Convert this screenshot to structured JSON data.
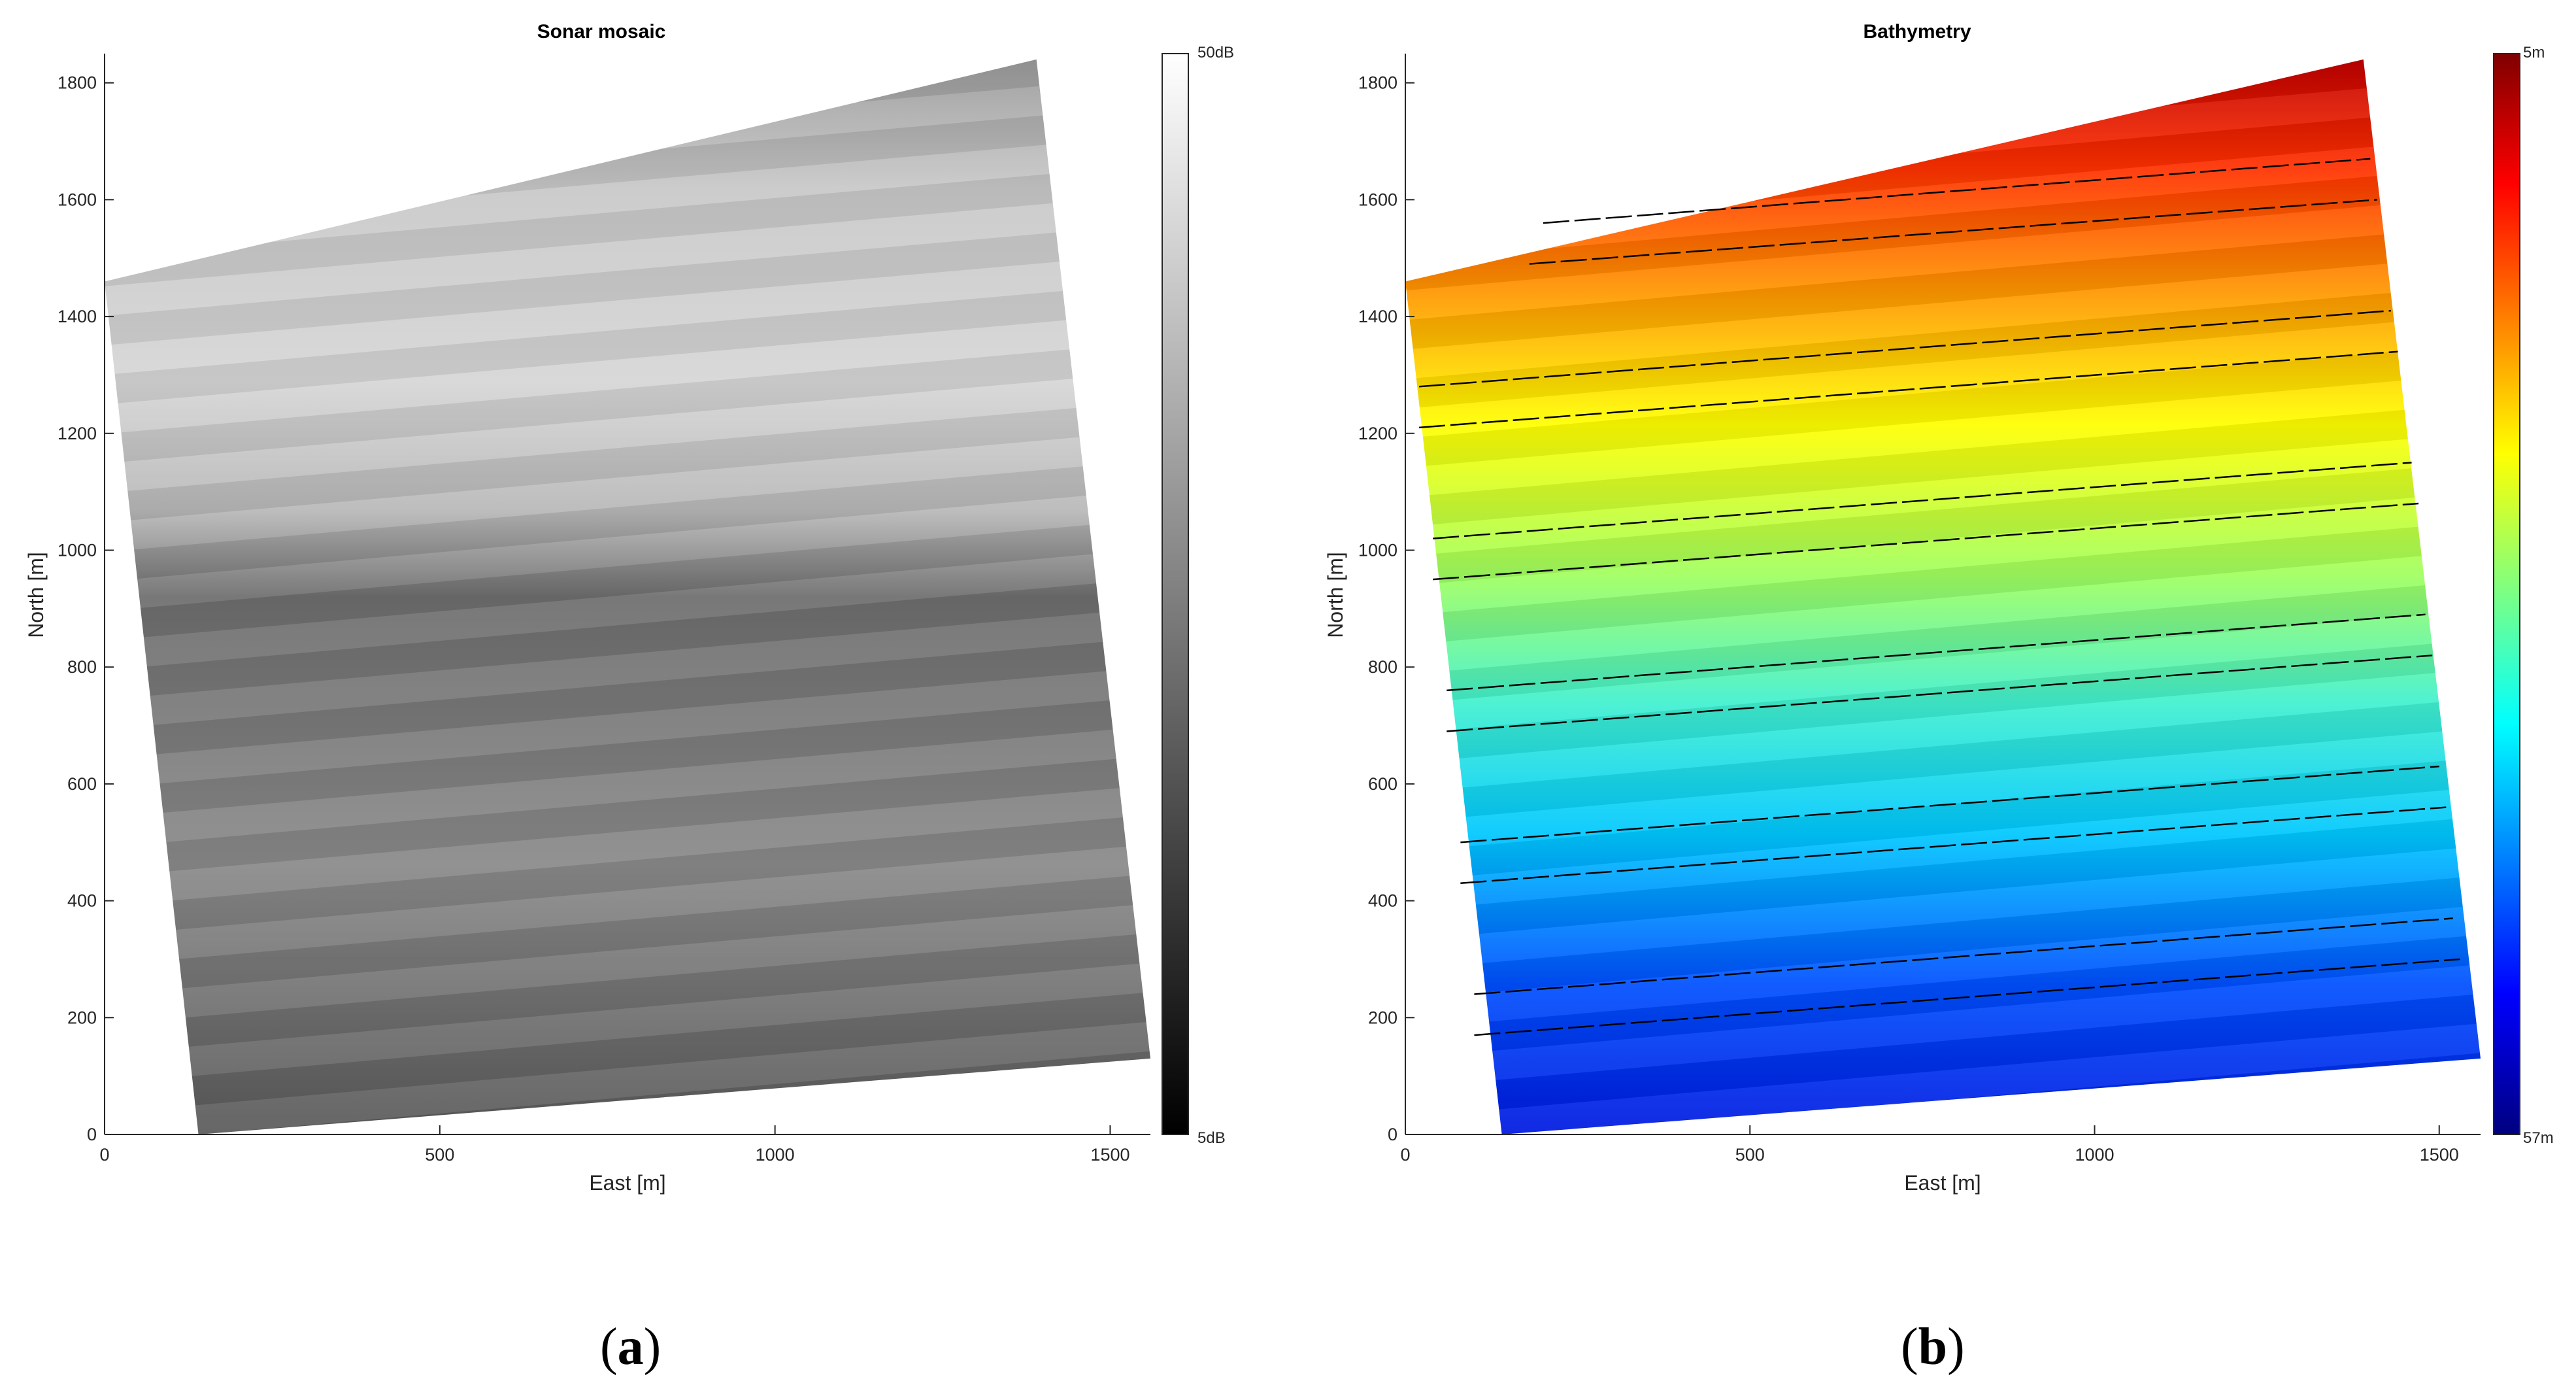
{
  "chart_data": [
    {
      "type": "heatmap",
      "title": "Sonar mosaic",
      "xlabel": "East [m]",
      "ylabel": "North [m]",
      "xlim": [
        0,
        1560
      ],
      "ylim": [
        0,
        1850
      ],
      "xticks": [
        0,
        500,
        1000,
        1500
      ],
      "yticks": [
        0,
        200,
        400,
        600,
        800,
        1000,
        1200,
        1400,
        1600,
        1800
      ],
      "colormap": "gray",
      "colorbar": {
        "max_label": "50dB",
        "min_label": "5dB",
        "min": 5,
        "max": 50,
        "unit": "dB"
      },
      "survey_corners": [
        [
          140,
          0
        ],
        [
          1560,
          130
        ],
        [
          1390,
          1840
        ],
        [
          0,
          1460
        ]
      ]
    },
    {
      "type": "heatmap",
      "title": "Bathymetry",
      "xlabel": "East [m]",
      "ylabel": "North [m]",
      "xlim": [
        0,
        1560
      ],
      "ylim": [
        0,
        1850
      ],
      "xticks": [
        0,
        500,
        1000,
        1500
      ],
      "yticks": [
        0,
        200,
        400,
        600,
        800,
        1000,
        1200,
        1400,
        1600,
        1800
      ],
      "colormap": "jet",
      "colorbar": {
        "max_label": "5m",
        "min_label": "57m",
        "shallow": 5,
        "deep": 57,
        "unit": "m"
      },
      "survey_corners": [
        [
          140,
          0
        ],
        [
          1560,
          130
        ],
        [
          1390,
          1840
        ],
        [
          0,
          1460
        ]
      ],
      "track_lines": [
        [
          [
            200,
            1560
          ],
          [
            1400,
            1670
          ]
        ],
        [
          [
            180,
            1490
          ],
          [
            1410,
            1600
          ]
        ],
        [
          [
            20,
            1280
          ],
          [
            1430,
            1410
          ]
        ],
        [
          [
            20,
            1210
          ],
          [
            1440,
            1340
          ]
        ],
        [
          [
            40,
            1020
          ],
          [
            1460,
            1150
          ]
        ],
        [
          [
            40,
            950
          ],
          [
            1470,
            1080
          ]
        ],
        [
          [
            60,
            760
          ],
          [
            1480,
            890
          ]
        ],
        [
          [
            60,
            690
          ],
          [
            1490,
            820
          ]
        ],
        [
          [
            80,
            500
          ],
          [
            1500,
            630
          ]
        ],
        [
          [
            80,
            430
          ],
          [
            1510,
            560
          ]
        ],
        [
          [
            100,
            240
          ],
          [
            1520,
            370
          ]
        ],
        [
          [
            100,
            170
          ],
          [
            1530,
            300
          ]
        ]
      ]
    }
  ],
  "labels": {
    "a": "a",
    "b": "b"
  },
  "colors": {
    "axis": "#262626",
    "grid_bg": "#ffffff",
    "track": "#000000"
  }
}
